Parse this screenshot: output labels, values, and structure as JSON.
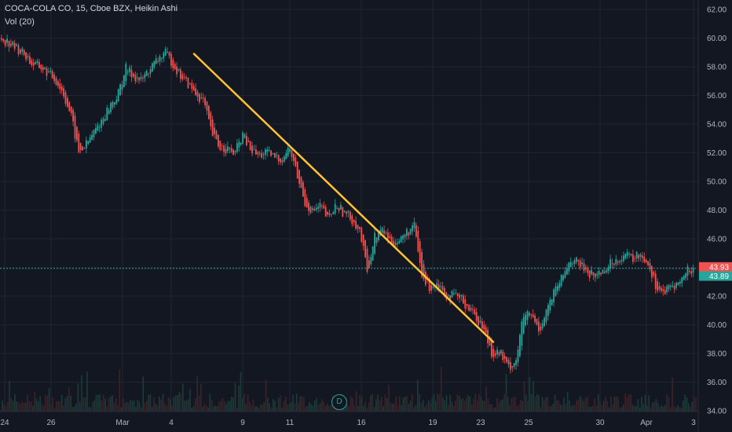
{
  "legend": {
    "title": "COCA-COLA CO, 15, Cboe BZX, Heikin Ashi",
    "volume": "Vol (20)"
  },
  "marker": {
    "label": "D"
  },
  "colors": {
    "up": "#26a69a",
    "down": "#ef5350",
    "trendline": "#ffc233",
    "background": "#131722",
    "grid": "#1f2433"
  },
  "chart_data": {
    "type": "line",
    "title": "COCA-COLA CO, 15, Cboe BZX, Heikin Ashi",
    "xlabel": "",
    "ylabel": "",
    "ylim": [
      34,
      63
    ],
    "y_ticks": [
      "62.00",
      "60.00",
      "58.00",
      "56.00",
      "54.00",
      "52.00",
      "50.00",
      "48.00",
      "46.00",
      "44.00",
      "42.00",
      "40.00",
      "38.00",
      "36.00",
      "34.00"
    ],
    "x_ticks": [
      "24",
      "26",
      "Mar",
      "4",
      "9",
      "11",
      "16",
      "19",
      "23",
      "25",
      "30",
      "Apr",
      "3"
    ],
    "series": [
      {
        "values": [
          60.0,
          59.7,
          59.3,
          58.9,
          58.2,
          58.0,
          57.6,
          57.1,
          56.2,
          54.6,
          52.0,
          52.6,
          53.5,
          54.3,
          55.3,
          56.0,
          57.9,
          57.4,
          57.0,
          57.8,
          58.4,
          59.0,
          58.3,
          57.4,
          56.8,
          56.1,
          55.6,
          53.4,
          52.4,
          52.3,
          51.9,
          53.3,
          52.2,
          51.8,
          52.0,
          51.7,
          51.5,
          52.4,
          50.4,
          48.5,
          47.9,
          48.3,
          47.3,
          48.4,
          47.8,
          47.4,
          46.6,
          43.7,
          46.3,
          46.6,
          45.8,
          45.8,
          46.4,
          46.9,
          43.3,
          42.6,
          43.0,
          42.1,
          42.0,
          41.8,
          41.2,
          40.5,
          39.6,
          38.0,
          38.1,
          37.0,
          37.4,
          40.6,
          40.7,
          39.6,
          41.1,
          42.3,
          43.3,
          44.6,
          44.3,
          43.8,
          43.4,
          43.7,
          44.2,
          44.6,
          44.9,
          44.6,
          44.9,
          44.3,
          42.7,
          42.2,
          42.7,
          42.9,
          43.8,
          43.9
        ]
      }
    ],
    "last_price": {
      "red": "43.93",
      "green": "43.89"
    },
    "trendline": {
      "from": [
        "Mar 5",
        58.9
      ],
      "to": [
        "Mar 23",
        38.8
      ]
    }
  }
}
